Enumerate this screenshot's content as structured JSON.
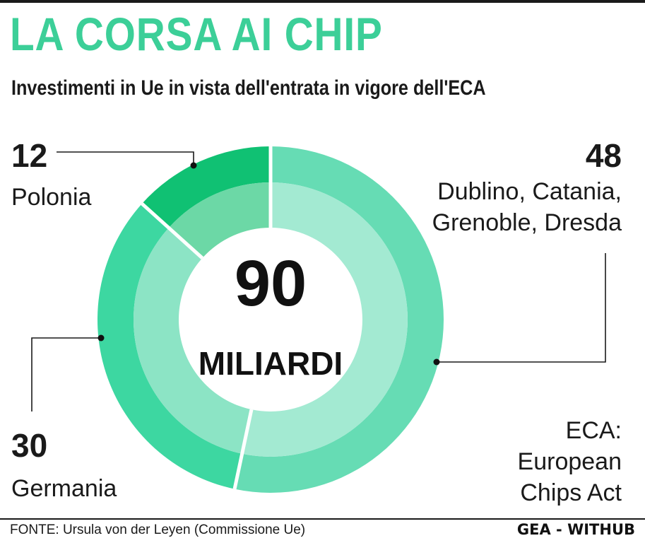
{
  "header": {
    "title": "LA CORSA AI CHIP",
    "subtitle": "Investimenti in Ue in vista dell'entrata in vigore dell'ECA"
  },
  "chart_data": {
    "type": "pie",
    "variant": "donut",
    "center_value": "90",
    "center_label": "MILIARDI",
    "slices": [
      {
        "value": 48,
        "value_label": "48",
        "label_lines": [
          "Dublino, Catania,",
          "Grenoble, Dresda"
        ],
        "outer_color": "#66dcb4",
        "inner_color": "#a3ead2"
      },
      {
        "value": 30,
        "value_label": "30",
        "label_lines": [
          "Germania"
        ],
        "outer_color": "#3dd7a1",
        "inner_color": "#8ce4c5"
      },
      {
        "value": 12,
        "value_label": "12",
        "label_lines": [
          "Polonia"
        ],
        "outer_color": "#10c173",
        "inner_color": "#6cd8a6"
      }
    ],
    "note_lines": [
      "ECA:",
      "European",
      "Chips Act"
    ]
  },
  "footer": {
    "source": "FONTE: Ursula von der Leyen (Commissione Ue)",
    "credit": "GEA - WITHUB"
  }
}
